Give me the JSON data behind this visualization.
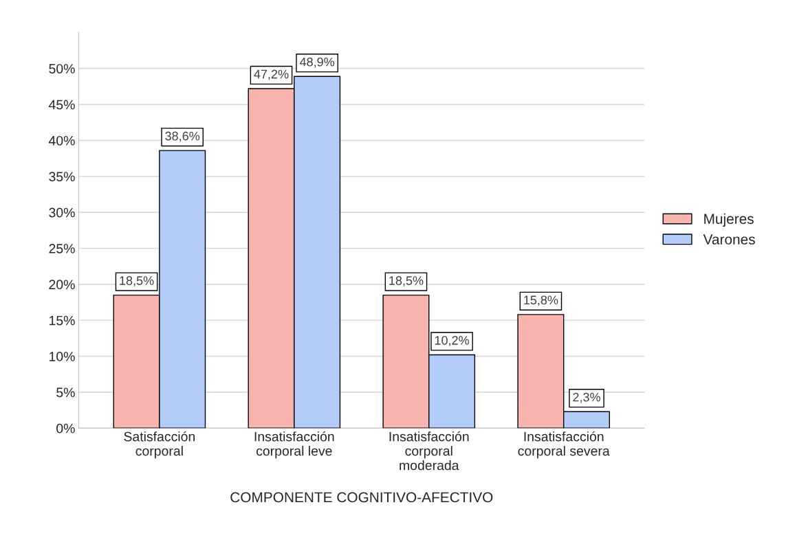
{
  "chart_data": {
    "type": "bar",
    "xlabel": "COMPONENTE COGNITIVO-AFECTIVO",
    "categories": [
      "Satisfacción\ncorporal",
      "Insatisfacción\ncorporal leve",
      "Insatisfacción\ncorporal\nmoderada",
      "Insatisfacción\ncorporal severa"
    ],
    "series": [
      {
        "name": "Mujeres",
        "color": "#f8b4ae",
        "values": [
          18.5,
          47.2,
          18.5,
          15.8
        ],
        "value_labels": [
          "18,5%",
          "47,2%",
          "18,5%",
          "15,8%"
        ]
      },
      {
        "name": "Varones",
        "color": "#b4ccfa",
        "values": [
          38.6,
          48.9,
          10.2,
          2.3
        ],
        "value_labels": [
          "38,6%",
          "48,9%",
          "10,2%",
          "2,3%"
        ]
      }
    ],
    "ylim": [
      0,
      55
    ],
    "yticks": [
      {
        "value": 0,
        "label": "0%"
      },
      {
        "value": 5,
        "label": "5%"
      },
      {
        "value": 10,
        "label": "10%"
      },
      {
        "value": 15,
        "label": "15%"
      },
      {
        "value": 20,
        "label": "20%"
      },
      {
        "value": 25,
        "label": "25%"
      },
      {
        "value": 30,
        "label": "30%"
      },
      {
        "value": 35,
        "label": "35%"
      },
      {
        "value": 40,
        "label": "40%"
      },
      {
        "value": 45,
        "label": "45%"
      },
      {
        "value": 50,
        "label": "50%"
      }
    ],
    "grid": "y",
    "legend": "right"
  }
}
